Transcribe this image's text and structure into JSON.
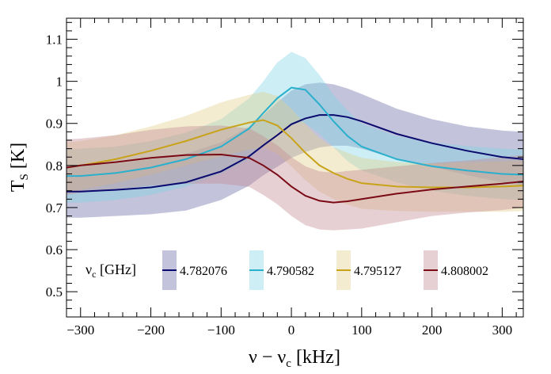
{
  "chart_data": {
    "type": "line",
    "xlabel_main": "ν − ν",
    "xlabel_sub": "c",
    "xlabel_unit": " [kHz]",
    "ylabel_main": "T",
    "ylabel_sub": "S",
    "ylabel_unit": " [K]",
    "xlim": [
      -320,
      330
    ],
    "ylim": [
      0.44,
      1.15
    ],
    "x_ticks": [
      -300,
      -200,
      -100,
      0,
      100,
      200,
      300
    ],
    "x_tick_labels": [
      "−300",
      "−200",
      "−100",
      "0",
      "100",
      "200",
      "300"
    ],
    "y_ticks": [
      0.5,
      0.6,
      0.7,
      0.8,
      0.9,
      1.0,
      1.1
    ],
    "y_tick_labels": [
      "0.5",
      "0.6",
      "0.7",
      "0.8",
      "0.9",
      "1",
      "1.1"
    ],
    "x_minor_step": 20,
    "y_minor_step": 0.02,
    "legend_title_main": "ν",
    "legend_title_sub": "c",
    "legend_title_unit": " [GHz]",
    "x": [
      -320,
      -300,
      -250,
      -200,
      -150,
      -100,
      -60,
      -40,
      -20,
      0,
      20,
      40,
      60,
      80,
      100,
      150,
      200,
      250,
      300,
      330
    ],
    "series": [
      {
        "name": "4.782076",
        "line_color": "#0a0a6e",
        "band_color": "#6a6aa8",
        "values": [
          0.738,
          0.738,
          0.742,
          0.748,
          0.76,
          0.786,
          0.822,
          0.848,
          0.872,
          0.898,
          0.912,
          0.92,
          0.92,
          0.915,
          0.905,
          0.875,
          0.853,
          0.835,
          0.82,
          0.815
        ],
        "upper": [
          0.8,
          0.8,
          0.805,
          0.815,
          0.828,
          0.855,
          0.893,
          0.92,
          0.95,
          0.978,
          0.993,
          0.997,
          0.993,
          0.983,
          0.97,
          0.935,
          0.91,
          0.893,
          0.883,
          0.88
        ],
        "lower": [
          0.676,
          0.676,
          0.68,
          0.684,
          0.693,
          0.718,
          0.752,
          0.777,
          0.797,
          0.818,
          0.832,
          0.843,
          0.847,
          0.847,
          0.84,
          0.815,
          0.797,
          0.777,
          0.76,
          0.752
        ]
      },
      {
        "name": "4.790582",
        "line_color": "#2ab0cc",
        "band_color": "#7fd4e4",
        "values": [
          0.775,
          0.775,
          0.782,
          0.795,
          0.815,
          0.845,
          0.888,
          0.925,
          0.96,
          0.985,
          0.98,
          0.945,
          0.905,
          0.87,
          0.845,
          0.815,
          0.798,
          0.788,
          0.78,
          0.778
        ],
        "upper": [
          0.84,
          0.84,
          0.845,
          0.858,
          0.878,
          0.91,
          0.96,
          1.0,
          1.045,
          1.07,
          1.055,
          1.015,
          0.968,
          0.93,
          0.9,
          0.87,
          0.855,
          0.846,
          0.84,
          0.838
        ],
        "lower": [
          0.712,
          0.712,
          0.718,
          0.73,
          0.75,
          0.78,
          0.815,
          0.85,
          0.878,
          0.9,
          0.9,
          0.875,
          0.843,
          0.81,
          0.788,
          0.76,
          0.74,
          0.728,
          0.72,
          0.718
        ]
      },
      {
        "name": "4.795127",
        "line_color": "#c8a31a",
        "band_color": "#e2d08a",
        "values": [
          0.795,
          0.8,
          0.815,
          0.835,
          0.858,
          0.885,
          0.902,
          0.908,
          0.895,
          0.865,
          0.83,
          0.8,
          0.782,
          0.768,
          0.758,
          0.75,
          0.748,
          0.748,
          0.75,
          0.752
        ],
        "upper": [
          0.855,
          0.858,
          0.872,
          0.893,
          0.918,
          0.95,
          0.968,
          0.975,
          0.965,
          0.935,
          0.898,
          0.865,
          0.843,
          0.83,
          0.818,
          0.808,
          0.805,
          0.808,
          0.81,
          0.812
        ],
        "lower": [
          0.735,
          0.742,
          0.758,
          0.778,
          0.8,
          0.822,
          0.838,
          0.843,
          0.828,
          0.798,
          0.765,
          0.738,
          0.72,
          0.707,
          0.697,
          0.692,
          0.69,
          0.69,
          0.69,
          0.692
        ]
      },
      {
        "name": "4.808002",
        "line_color": "#7a0a14",
        "band_color": "#c48a92",
        "values": [
          0.795,
          0.8,
          0.808,
          0.818,
          0.825,
          0.826,
          0.818,
          0.8,
          0.778,
          0.75,
          0.728,
          0.716,
          0.712,
          0.715,
          0.72,
          0.733,
          0.743,
          0.75,
          0.757,
          0.762
        ],
        "upper": [
          0.862,
          0.864,
          0.872,
          0.885,
          0.893,
          0.895,
          0.888,
          0.87,
          0.848,
          0.82,
          0.798,
          0.786,
          0.783,
          0.787,
          0.79,
          0.798,
          0.806,
          0.812,
          0.82,
          0.825
        ],
        "lower": [
          0.73,
          0.735,
          0.744,
          0.752,
          0.757,
          0.757,
          0.749,
          0.73,
          0.708,
          0.68,
          0.658,
          0.648,
          0.646,
          0.648,
          0.65,
          0.665,
          0.68,
          0.688,
          0.694,
          0.7
        ]
      }
    ],
    "legend_placement": "bottom"
  }
}
